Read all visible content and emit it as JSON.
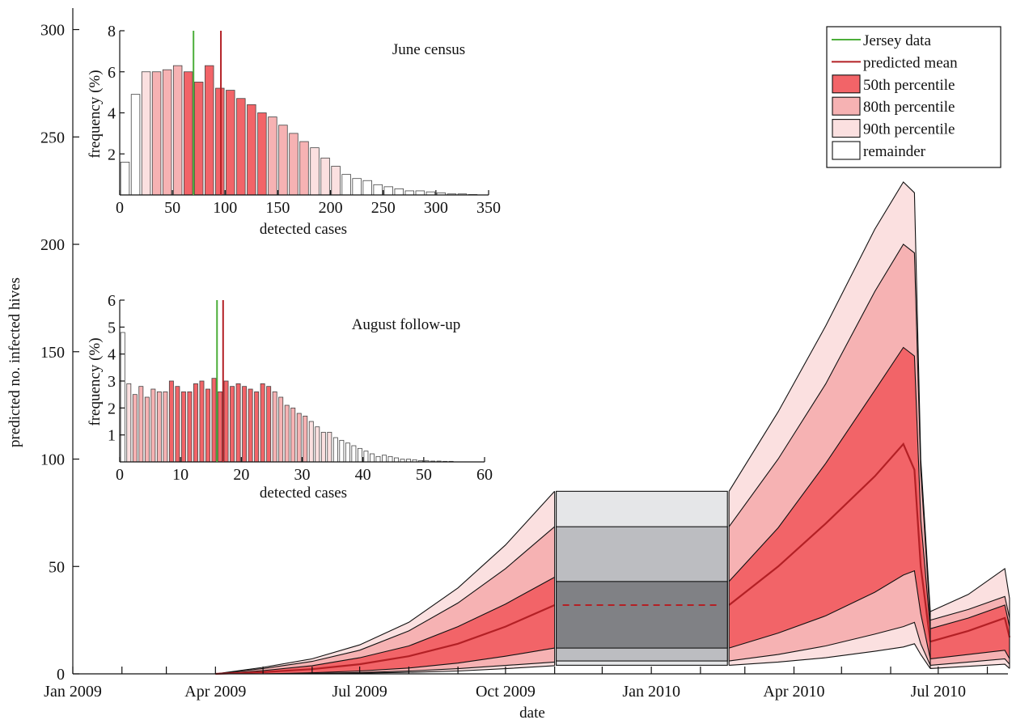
{
  "colors": {
    "jersey": "#4cae3a",
    "mean": "#b32025",
    "p50": "#f26468",
    "p80": "#f6b2b3",
    "p90": "#fbe0e0",
    "remainder": "#ffffff",
    "gap50": "#808185",
    "gap80": "#bcbdc1",
    "gap90": "#e5e6e8"
  },
  "chart_data": [
    {
      "type": "area",
      "xlabel": "date",
      "ylabel": "predicted no. infected hives",
      "ylim": [
        0,
        310
      ],
      "yticks": [
        0,
        50,
        100,
        150,
        200,
        250,
        300
      ],
      "xrange_days": [
        0,
        590
      ],
      "xticks": [
        {
          "label": "Jan 2009",
          "day": 0
        },
        {
          "label": "Apr 2009",
          "day": 90
        },
        {
          "label": "Jul 2009",
          "day": 181
        },
        {
          "label": "Oct 2009",
          "day": 273
        },
        {
          "label": "Jan 2010",
          "day": 365
        },
        {
          "label": "Apr 2010",
          "day": 455
        },
        {
          "label": "Jul 2010",
          "day": 546
        }
      ],
      "minor_ticks_days": [
        31,
        59,
        120,
        151,
        212,
        243,
        304,
        334,
        396,
        424,
        485,
        516,
        577
      ],
      "legend": {
        "placement": "top-right",
        "entries": [
          {
            "label": "Jersey data",
            "kind": "line",
            "color_key": "jersey"
          },
          {
            "label": "predicted mean",
            "kind": "line",
            "color_key": "mean"
          },
          {
            "label": "50th percentile",
            "kind": "box",
            "color_key": "p50"
          },
          {
            "label": "80th percentile",
            "kind": "box",
            "color_key": "p80"
          },
          {
            "label": "90th percentile",
            "kind": "box",
            "color_key": "p90"
          },
          {
            "label": "remainder",
            "kind": "box",
            "color_key": "remainder"
          }
        ]
      },
      "winter_gap": {
        "x_days": [
          305,
          413
        ],
        "levels": {
          "p90": [
            4,
            85
          ],
          "p80": [
            6,
            68.5
          ],
          "p50": [
            12,
            43
          ],
          "mean": 32
        }
      },
      "segments": [
        {
          "x_days": [
            90,
            120,
            151,
            181,
            212,
            243,
            273,
            304
          ],
          "mean": [
            0,
            0.8,
            2.2,
            4.5,
            8.2,
            14,
            22,
            32
          ],
          "p50": [
            [
              0,
              0,
              0.5,
              1.3,
              2.7,
              5,
              8.2,
              12
            ],
            [
              0,
              1.5,
              3.8,
              7.5,
              13,
              22,
              32.5,
              45
            ]
          ],
          "p80": [
            [
              0,
              0,
              0.2,
              0.6,
              1.3,
              2.4,
              3.9,
              5.5
            ],
            [
              0,
              2.5,
              5.8,
              11,
              20,
              33,
              49,
              68.5
            ]
          ],
          "p90": [
            [
              0,
              0,
              0,
              0.3,
              0.7,
              1.3,
              2.4,
              3.8
            ],
            [
              0,
              3,
              7,
              13.5,
              24,
              40,
              60,
              85
            ]
          ]
        },
        {
          "x_days": [
            414,
            445,
            475,
            506,
            524,
            531,
            535,
            541
          ],
          "mean": [
            32,
            50,
            70,
            92,
            107,
            95,
            50,
            15
          ],
          "p50": [
            [
              12,
              19,
              27,
              38,
              46,
              48,
              28,
              7
            ],
            [
              43,
              68,
              98,
              132,
              152,
              148,
              72,
              21
            ]
          ],
          "p80": [
            [
              6,
              9,
              13,
              18.5,
              22,
              24,
              14,
              4
            ],
            [
              68.5,
              100,
              135,
              178,
              200,
              196,
              95,
              25
            ]
          ],
          "p90": [
            [
              4,
              5.5,
              7.5,
              10.5,
              12.5,
              14,
              9,
              2.5
            ],
            [
              85,
              122,
              162,
              207,
              229,
              224,
              100,
              29
            ]
          ]
        },
        {
          "x_days": [
            541,
            565,
            588,
            591
          ],
          "mean": [
            15,
            20,
            26,
            17
          ],
          "p50": [
            [
              7,
              9,
              11,
              7
            ],
            [
              21,
              26,
              32,
              22
            ]
          ],
          "p80": [
            [
              4,
              5.5,
              7,
              4.5
            ],
            [
              25,
              30,
              36,
              26
            ]
          ],
          "p90": [
            [
              2.5,
              3.5,
              4.5,
              2.5
            ],
            [
              29,
              37,
              49,
              35
            ]
          ]
        }
      ]
    },
    {
      "type": "bar",
      "title": "June census",
      "xlabel": "detected cases",
      "ylabel": "frequency (%)",
      "xlim": [
        0,
        350
      ],
      "ylim": [
        0,
        8
      ],
      "xticks": [
        0,
        50,
        100,
        150,
        200,
        250,
        300,
        350
      ],
      "yticks": [
        2,
        4,
        6,
        8
      ],
      "bin_width": 10,
      "bins_start": [
        0,
        10,
        20,
        30,
        40,
        50,
        60,
        70,
        80,
        90,
        100,
        110,
        120,
        130,
        140,
        150,
        160,
        170,
        180,
        190,
        200,
        210,
        220,
        230,
        240,
        250,
        260,
        270,
        280,
        290,
        300,
        310,
        320,
        330
      ],
      "values": [
        1.6,
        4.9,
        6.0,
        6.0,
        6.1,
        6.3,
        6.0,
        5.5,
        6.3,
        5.2,
        5.1,
        4.7,
        4.4,
        4.0,
        3.8,
        3.4,
        3.0,
        2.6,
        2.3,
        1.8,
        1.4,
        1.0,
        0.8,
        0.7,
        0.5,
        0.4,
        0.3,
        0.2,
        0.2,
        0.15,
        0.1,
        0.05,
        0.05,
        0.02
      ],
      "classes": [
        "remainder",
        "remainder",
        "p90",
        "p80",
        "p80",
        "p80",
        "p50",
        "p50",
        "p50",
        "p50",
        "p50",
        "p50",
        "p50",
        "p50",
        "p80",
        "p80",
        "p80",
        "p80",
        "p90",
        "p90",
        "p90",
        "remainder",
        "remainder",
        "remainder",
        "remainder",
        "remainder",
        "remainder",
        "remainder",
        "remainder",
        "remainder",
        "remainder",
        "remainder",
        "remainder",
        "remainder"
      ],
      "jersey_value": 70,
      "predicted_mean": 96
    },
    {
      "type": "bar",
      "title": "August follow-up",
      "xlabel": "detected cases",
      "ylabel": "frequency (%)",
      "xlim": [
        0,
        60
      ],
      "ylim": [
        0,
        6
      ],
      "xticks": [
        0,
        10,
        20,
        30,
        40,
        50,
        60
      ],
      "yticks": [
        1,
        2,
        3,
        4,
        5,
        6
      ],
      "bin_width": 1,
      "bins_start": [
        0,
        1,
        2,
        3,
        4,
        5,
        6,
        7,
        8,
        9,
        10,
        11,
        12,
        13,
        14,
        15,
        16,
        17,
        18,
        19,
        20,
        21,
        22,
        23,
        24,
        25,
        26,
        27,
        28,
        29,
        30,
        31,
        32,
        33,
        34,
        35,
        36,
        37,
        38,
        39,
        40,
        41,
        42,
        43,
        44,
        45,
        46,
        47,
        48,
        49,
        50,
        51,
        52,
        53,
        54
      ],
      "values": [
        4.8,
        2.9,
        2.5,
        2.8,
        2.4,
        2.7,
        2.6,
        2.6,
        3.0,
        2.8,
        2.6,
        2.6,
        2.9,
        3.0,
        2.7,
        3.1,
        2.6,
        3.0,
        2.8,
        2.9,
        2.8,
        2.7,
        2.6,
        2.9,
        2.8,
        2.6,
        2.4,
        2.1,
        2.0,
        1.8,
        1.7,
        1.5,
        1.3,
        1.1,
        1.1,
        0.9,
        0.8,
        0.7,
        0.6,
        0.5,
        0.4,
        0.3,
        0.2,
        0.25,
        0.2,
        0.15,
        0.1,
        0.1,
        0.08,
        0.05,
        0.04,
        0.03,
        0.03,
        0.02,
        0.02
      ],
      "classes": [
        "remainder",
        "p90",
        "p80",
        "p80",
        "p80",
        "p80",
        "p80",
        "p80",
        "p50",
        "p50",
        "p50",
        "p50",
        "p50",
        "p50",
        "p50",
        "p50",
        "p50",
        "p50",
        "p50",
        "p50",
        "p50",
        "p50",
        "p50",
        "p50",
        "p50",
        "p80",
        "p80",
        "p80",
        "p80",
        "p80",
        "p80",
        "p90",
        "p90",
        "p90",
        "p90",
        "remainder",
        "remainder",
        "remainder",
        "remainder",
        "remainder",
        "remainder",
        "remainder",
        "remainder",
        "remainder",
        "remainder",
        "remainder",
        "remainder",
        "remainder",
        "remainder",
        "remainder",
        "remainder",
        "remainder",
        "remainder",
        "remainder",
        "remainder"
      ],
      "jersey_value": 16,
      "predicted_mean": 17
    }
  ]
}
